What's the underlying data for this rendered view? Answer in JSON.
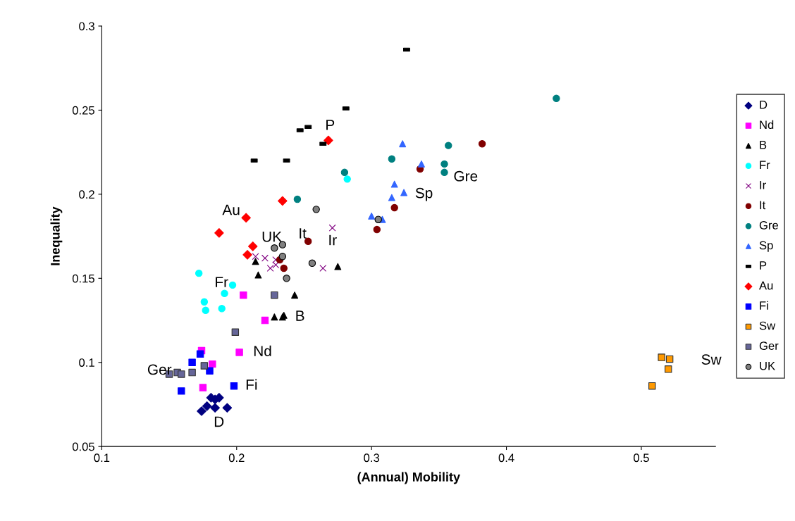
{
  "chart_data": {
    "type": "scatter",
    "xlabel": "(Annual) Mobility",
    "ylabel": "Inequality",
    "xlim": [
      0.1,
      0.555
    ],
    "xticks": [
      0.1,
      0.2,
      0.3,
      0.4,
      0.5
    ],
    "ylim": [
      0.05,
      0.3
    ],
    "yticks": [
      0.05,
      0.1,
      0.15,
      0.2,
      0.25,
      0.3
    ],
    "grid": false,
    "legend": "right",
    "series": [
      {
        "name": "D",
        "color": "#000080",
        "marker": "diamond",
        "x": [
          0.174,
          0.178,
          0.181,
          0.184,
          0.187,
          0.184,
          0.193
        ],
        "values": [
          0.071,
          0.074,
          0.079,
          0.078,
          0.079,
          0.073,
          0.073
        ]
      },
      {
        "name": "Nd",
        "color": "#ff00ff",
        "marker": "square",
        "x": [
          0.205,
          0.221,
          0.174,
          0.202,
          0.182,
          0.175
        ],
        "values": [
          0.14,
          0.125,
          0.107,
          0.106,
          0.099,
          0.085
        ]
      },
      {
        "name": "B",
        "color": "#000000",
        "marker": "triangle",
        "x": [
          0.214,
          0.216,
          0.275,
          0.243,
          0.228,
          0.234,
          0.235
        ],
        "values": [
          0.16,
          0.152,
          0.157,
          0.14,
          0.127,
          0.127,
          0.128
        ]
      },
      {
        "name": "Fr",
        "color": "#00ffff",
        "marker": "circle",
        "x": [
          0.172,
          0.197,
          0.191,
          0.176,
          0.177,
          0.189,
          0.282
        ],
        "values": [
          0.153,
          0.146,
          0.141,
          0.136,
          0.131,
          0.132,
          0.209
        ]
      },
      {
        "name": "Ir",
        "color": "#800080",
        "marker": "cross",
        "x": [
          0.214,
          0.221,
          0.225,
          0.229,
          0.229,
          0.264,
          0.271
        ],
        "values": [
          0.163,
          0.162,
          0.156,
          0.158,
          0.161,
          0.156,
          0.18
        ]
      },
      {
        "name": "It",
        "color": "#800000",
        "marker": "circle",
        "x": [
          0.253,
          0.232,
          0.235,
          0.304,
          0.317,
          0.336,
          0.382
        ],
        "values": [
          0.172,
          0.161,
          0.156,
          0.179,
          0.192,
          0.215,
          0.23
        ]
      },
      {
        "name": "Gre",
        "color": "#008080",
        "marker": "circle",
        "x": [
          0.245,
          0.28,
          0.315,
          0.357,
          0.354,
          0.354,
          0.437
        ],
        "values": [
          0.197,
          0.213,
          0.221,
          0.229,
          0.218,
          0.213,
          0.257
        ]
      },
      {
        "name": "Sp",
        "color": "#3366ff",
        "marker": "triangle",
        "x": [
          0.323,
          0.337,
          0.317,
          0.324,
          0.315,
          0.3,
          0.308
        ],
        "values": [
          0.23,
          0.218,
          0.206,
          0.201,
          0.198,
          0.187,
          0.185
        ]
      },
      {
        "name": "P",
        "color": "#000000",
        "x": [
          0.213,
          0.237,
          0.247,
          0.253,
          0.264,
          0.281,
          0.326
        ],
        "values": [
          0.22,
          0.22,
          0.238,
          0.24,
          0.23,
          0.251,
          0.286
        ]
      },
      {
        "name": "Au",
        "color": "#ff0000",
        "marker": "diamond",
        "x": [
          0.268,
          0.234,
          0.207,
          0.187,
          0.212,
          0.208
        ],
        "values": [
          0.232,
          0.196,
          0.186,
          0.177,
          0.169,
          0.164
        ]
      },
      {
        "name": "Fi",
        "color": "#0000ff",
        "marker": "square",
        "x": [
          0.173,
          0.167,
          0.18,
          0.159,
          0.198
        ],
        "values": [
          0.105,
          0.1,
          0.095,
          0.083,
          0.086
        ]
      },
      {
        "name": "Sw",
        "color": "#ff9900",
        "marker": "square",
        "x": [
          0.515,
          0.521,
          0.52,
          0.508
        ],
        "values": [
          0.103,
          0.102,
          0.096,
          0.086
        ]
      },
      {
        "name": "Ger",
        "color": "#666699",
        "marker": "square",
        "x": [
          0.199,
          0.176,
          0.167,
          0.156,
          0.159,
          0.15,
          0.228
        ],
        "values": [
          0.118,
          0.098,
          0.094,
          0.094,
          0.093,
          0.093,
          0.14
        ]
      },
      {
        "name": "UK",
        "color": "#808080",
        "marker": "circle",
        "x": [
          0.259,
          0.305,
          0.228,
          0.234,
          0.234,
          0.256,
          0.237
        ],
        "values": [
          0.191,
          0.185,
          0.168,
          0.17,
          0.163,
          0.159,
          0.15
        ]
      }
    ],
    "annotations": [
      "P",
      "Au",
      "UK",
      "It",
      "Ir",
      "Gre",
      "Sp",
      "Fr",
      "B",
      "Nd",
      "Ger",
      "Fi",
      "D",
      "Sw"
    ]
  }
}
